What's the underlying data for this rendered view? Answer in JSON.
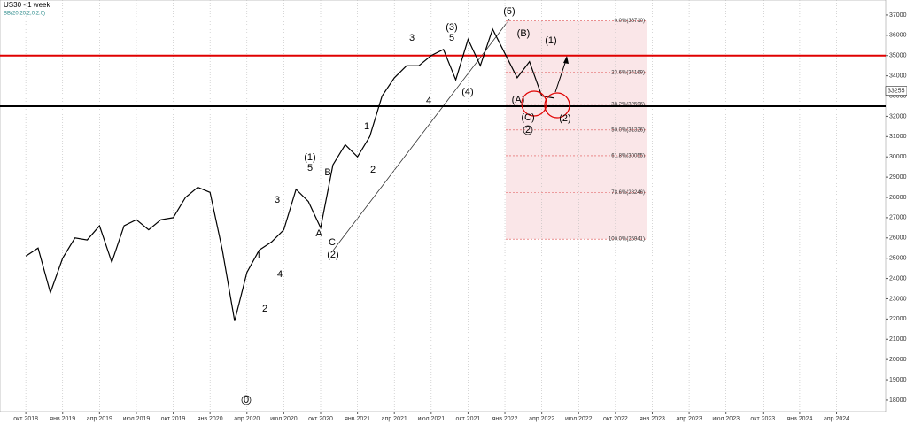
{
  "chart_data": {
    "type": "line",
    "title": "US30 - 1 week",
    "subtitle": "BB(20,20,2,0,2.0)",
    "x": [
      0,
      1,
      2,
      3,
      4,
      5,
      6,
      7,
      8,
      9,
      10,
      11,
      12,
      13,
      14,
      15,
      16,
      17,
      18,
      19,
      20,
      21,
      22,
      23,
      24,
      25,
      26,
      27,
      28,
      29,
      30,
      31,
      32,
      33,
      34,
      35,
      36,
      37,
      38,
      39,
      40,
      41,
      42,
      43
    ],
    "series": [
      {
        "name": "US30",
        "color": "#000000",
        "values": [
          25100,
          25500,
          23300,
          25000,
          26000,
          25900,
          26600,
          24800,
          26600,
          26900,
          26400,
          26900,
          27000,
          28000,
          28500,
          28250,
          25400,
          21900,
          24300,
          25400,
          25800,
          26400,
          28400,
          27800,
          26500,
          29600,
          30600,
          30000,
          31000,
          33000,
          33900,
          34500,
          34500,
          35000,
          35300,
          33800,
          35800,
          34500,
          36300,
          35100,
          33900,
          34700,
          33000,
          32900
        ]
      }
    ],
    "xlim": [
      -2.1,
      70
    ],
    "xticks": [
      {
        "value": 0,
        "label": "окт 2018"
      },
      {
        "value": 3,
        "label": "янв 2019"
      },
      {
        "value": 6,
        "label": "апр 2019"
      },
      {
        "value": 9,
        "label": "июл 2019"
      },
      {
        "value": 12,
        "label": "окт 2019"
      },
      {
        "value": 15,
        "label": "янв 2020"
      },
      {
        "value": 18,
        "label": "апр 2020"
      },
      {
        "value": 21,
        "label": "июл 2020"
      },
      {
        "value": 24,
        "label": "окт 2020"
      },
      {
        "value": 27,
        "label": "янв 2021"
      },
      {
        "value": 30,
        "label": "апр 2021"
      },
      {
        "value": 33,
        "label": "июл 2021"
      },
      {
        "value": 36,
        "label": "окт 2021"
      },
      {
        "value": 39,
        "label": "янв 2022"
      },
      {
        "value": 42,
        "label": "апр 2022"
      },
      {
        "value": 45,
        "label": "июл 2022"
      },
      {
        "value": 48,
        "label": "окт 2022"
      },
      {
        "value": 51,
        "label": "янв 2023"
      },
      {
        "value": 54,
        "label": "апр 2023"
      },
      {
        "value": 57,
        "label": "июл 2023"
      },
      {
        "value": 60,
        "label": "окт 2023"
      },
      {
        "value": 63,
        "label": "янв 2024"
      },
      {
        "value": 66,
        "label": "апр 2024"
      }
    ],
    "ylim": [
      17430,
      37740
    ],
    "yticks": [
      18000,
      19000,
      20000,
      21000,
      22000,
      23000,
      24000,
      25000,
      26000,
      27000,
      28000,
      29000,
      30000,
      31000,
      32000,
      33000,
      34000,
      35000,
      36000,
      37000
    ],
    "xgrid": true,
    "current_price": 33255,
    "resistance": {
      "value": 35000,
      "color": "#e00000"
    },
    "support": {
      "value": 32500,
      "color": "#000000"
    },
    "fib_levels": [
      {
        "value": 36710,
        "label": "0.0%(36710)"
      },
      {
        "value": 34169,
        "label": "23.6%(34169)"
      },
      {
        "value": 32596,
        "label": "38.2%(32596)"
      },
      {
        "value": 31326,
        "label": "50.0%(31326)"
      },
      {
        "value": 30055,
        "label": "61.8%(30055)"
      },
      {
        "value": 28246,
        "label": "78.6%(28246)"
      },
      {
        "value": 25941,
        "label": "100.0%(25941)"
      }
    ],
    "annotations": [
      "(5)",
      "(B)",
      "(1)",
      "(A)",
      "(C)",
      "2",
      "(2)",
      "(3)",
      "3",
      "5",
      "(4)",
      "4",
      "(1)",
      "5",
      "B",
      "A",
      "C",
      "(2)",
      "3",
      "1",
      "4",
      "2",
      "0",
      "1",
      "2"
    ]
  }
}
